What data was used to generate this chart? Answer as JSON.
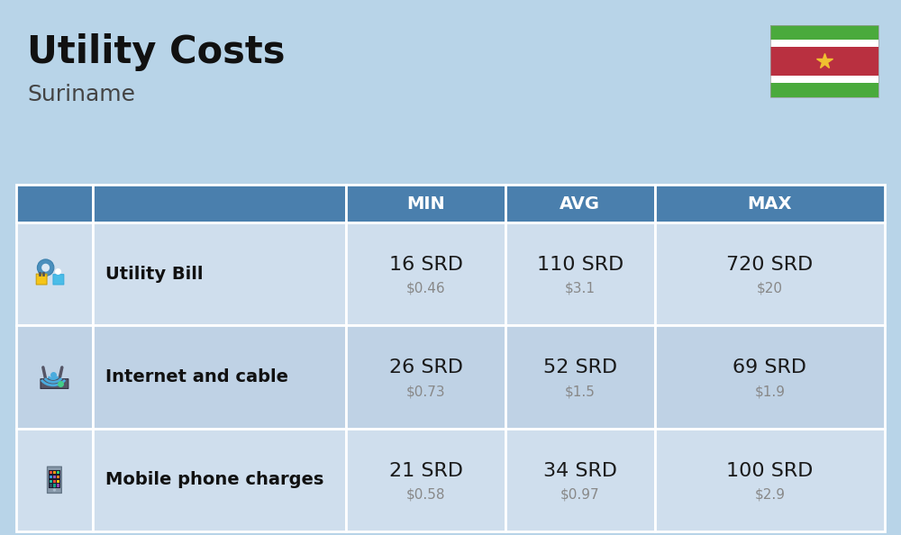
{
  "title": "Utility Costs",
  "subtitle": "Suriname",
  "background_color": "#b8d4e8",
  "header_bg_color": "#4a7fad",
  "header_text_color": "#ffffff",
  "row_bg_color_1": "#cfdeed",
  "row_bg_color_2": "#bfd2e5",
  "border_color": "#ffffff",
  "columns": [
    "MIN",
    "AVG",
    "MAX"
  ],
  "rows": [
    {
      "label": "Utility Bill",
      "min_srd": "16 SRD",
      "min_usd": "$0.46",
      "avg_srd": "110 SRD",
      "avg_usd": "$3.1",
      "max_srd": "720 SRD",
      "max_usd": "$20"
    },
    {
      "label": "Internet and cable",
      "min_srd": "26 SRD",
      "min_usd": "$0.73",
      "avg_srd": "52 SRD",
      "avg_usd": "$1.5",
      "max_srd": "69 SRD",
      "max_usd": "$1.9"
    },
    {
      "label": "Mobile phone charges",
      "min_srd": "21 SRD",
      "min_usd": "$0.58",
      "avg_srd": "34 SRD",
      "avg_usd": "$0.97",
      "max_srd": "100 SRD",
      "max_usd": "$2.9"
    }
  ],
  "title_fontsize": 30,
  "subtitle_fontsize": 18,
  "header_fontsize": 14,
  "label_fontsize": 14,
  "value_fontsize": 16,
  "usd_fontsize": 11,
  "flag_green": "#4aaa3c",
  "flag_red": "#b93040",
  "flag_white": "#ffffff",
  "flag_star": "#f0c030",
  "value_color": "#1a1a1a",
  "usd_color": "#888888",
  "label_color": "#111111"
}
